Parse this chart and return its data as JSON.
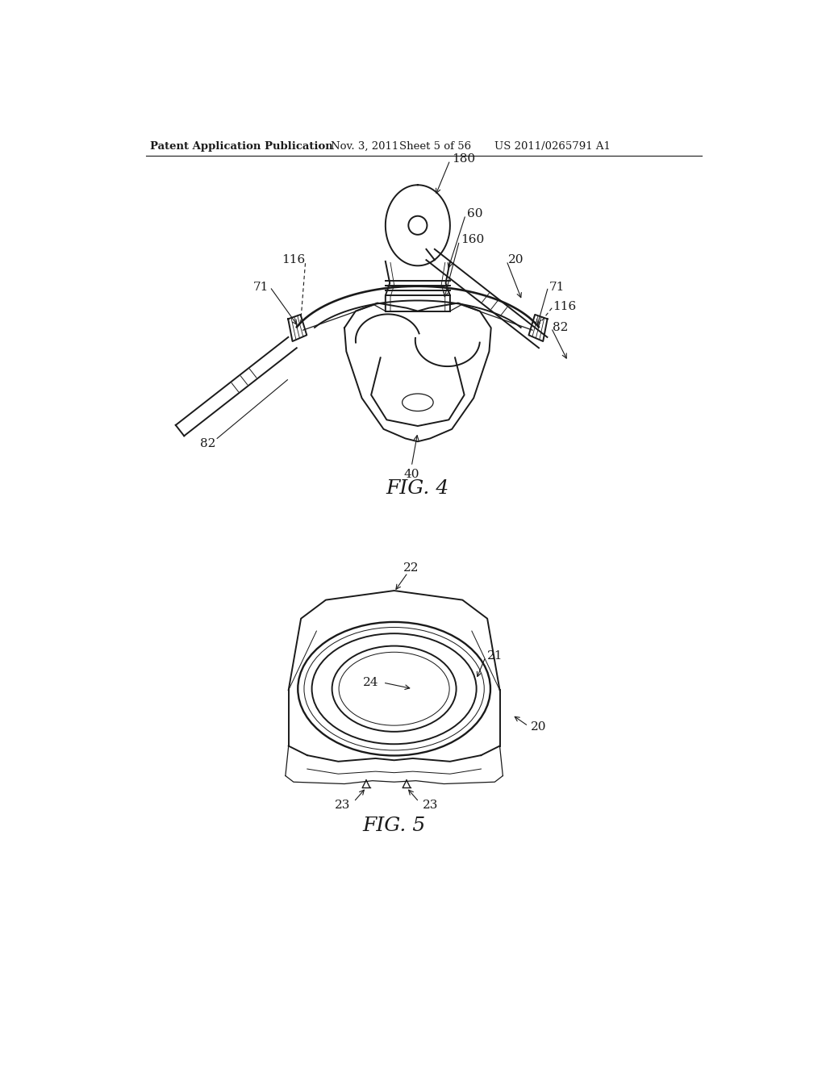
{
  "bg_color": "#ffffff",
  "header_text": "Patent Application Publication",
  "header_date": "Nov. 3, 2011",
  "header_sheet": "Sheet 5 of 56",
  "header_patent": "US 2011/0265791 A1",
  "fig4_label": "FIG. 4",
  "fig5_label": "FIG. 5",
  "line_color": "#1a1a1a",
  "line_width": 1.4,
  "thin_line": 0.9
}
